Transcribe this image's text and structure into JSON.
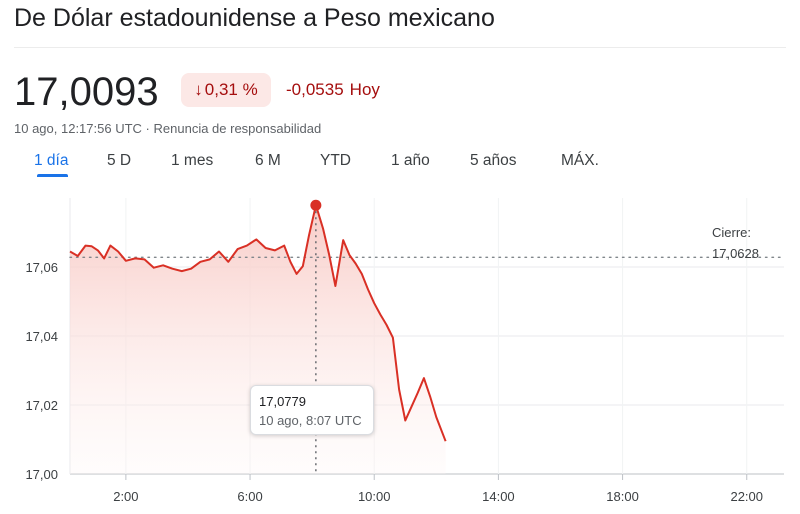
{
  "header": {
    "title": "De Dólar estadounidense a Peso mexicano",
    "price": "17,0093",
    "change_pct": "0,31 %",
    "change_arrow": "↓",
    "change_abs": "-0,0535",
    "change_period": "Hoy",
    "timestamp": "10 ago, 12:17:56 UTC",
    "separator": "·",
    "disclaimer": "Renuncia de responsabilidad"
  },
  "tabs": [
    {
      "label": "1 día",
      "active": true
    },
    {
      "label": "5 D"
    },
    {
      "label": "1 mes"
    },
    {
      "label": "6 M"
    },
    {
      "label": "YTD"
    },
    {
      "label": "1 año"
    },
    {
      "label": "5 años"
    },
    {
      "label": "MÁX."
    }
  ],
  "tooltip": {
    "value": "17,0779",
    "time": "10 ago, 8:07 UTC"
  },
  "colors": {
    "line": "#d93025",
    "fill": "#fce8e6",
    "negative_text": "#a50e0e",
    "active_tab": "#1a73e8"
  },
  "chart_data": {
    "type": "area",
    "x_unit": "hours UTC",
    "xlim": [
      0.2,
      23.2
    ],
    "ylim": [
      17.0,
      17.08
    ],
    "y_ticks": [
      17.0,
      17.02,
      17.04,
      17.06
    ],
    "y_tick_labels": [
      "17,00",
      "17,02",
      "17,04",
      "17,06"
    ],
    "x_ticks": [
      2,
      6,
      10,
      14,
      18,
      22
    ],
    "x_tick_labels": [
      "2:00",
      "6:00",
      "10:00",
      "14:00",
      "18:00",
      "22:00"
    ],
    "previous_close": {
      "label": "Cierre:",
      "value_label": "17,0628",
      "value": 17.0628
    },
    "highlight": {
      "x": 8.12,
      "y": 17.0779
    },
    "grid": true,
    "series": [
      {
        "x": [
          0.2,
          0.45,
          0.7,
          0.9,
          1.1,
          1.3,
          1.5,
          1.75,
          2.0,
          2.3,
          2.6,
          2.9,
          3.2,
          3.5,
          3.8,
          4.1,
          4.4,
          4.7,
          5.0,
          5.3,
          5.6,
          5.9,
          6.2,
          6.5,
          6.8,
          7.1,
          7.3,
          7.5,
          7.7,
          7.9,
          8.12,
          8.35,
          8.55,
          8.75,
          9.0,
          9.2,
          9.4,
          9.6,
          9.8,
          10.0,
          10.2,
          10.4,
          10.6,
          10.8,
          11.0,
          11.2,
          11.4,
          11.6,
          11.8,
          12.0,
          12.3
        ],
        "y": [
          17.0645,
          17.0632,
          17.0662,
          17.066,
          17.0648,
          17.0625,
          17.0662,
          17.0645,
          17.0618,
          17.0625,
          17.0622,
          17.0598,
          17.0605,
          17.0595,
          17.0588,
          17.0595,
          17.0615,
          17.0622,
          17.0645,
          17.0615,
          17.0652,
          17.0662,
          17.068,
          17.0655,
          17.0648,
          17.0662,
          17.0615,
          17.058,
          17.0602,
          17.0692,
          17.0779,
          17.0712,
          17.0635,
          17.0545,
          17.0678,
          17.0635,
          17.061,
          17.058,
          17.0535,
          17.0495,
          17.0462,
          17.0432,
          17.0395,
          17.0245,
          17.0155,
          17.0195,
          17.0235,
          17.0278,
          17.0225,
          17.0165,
          17.0095
        ]
      }
    ]
  }
}
